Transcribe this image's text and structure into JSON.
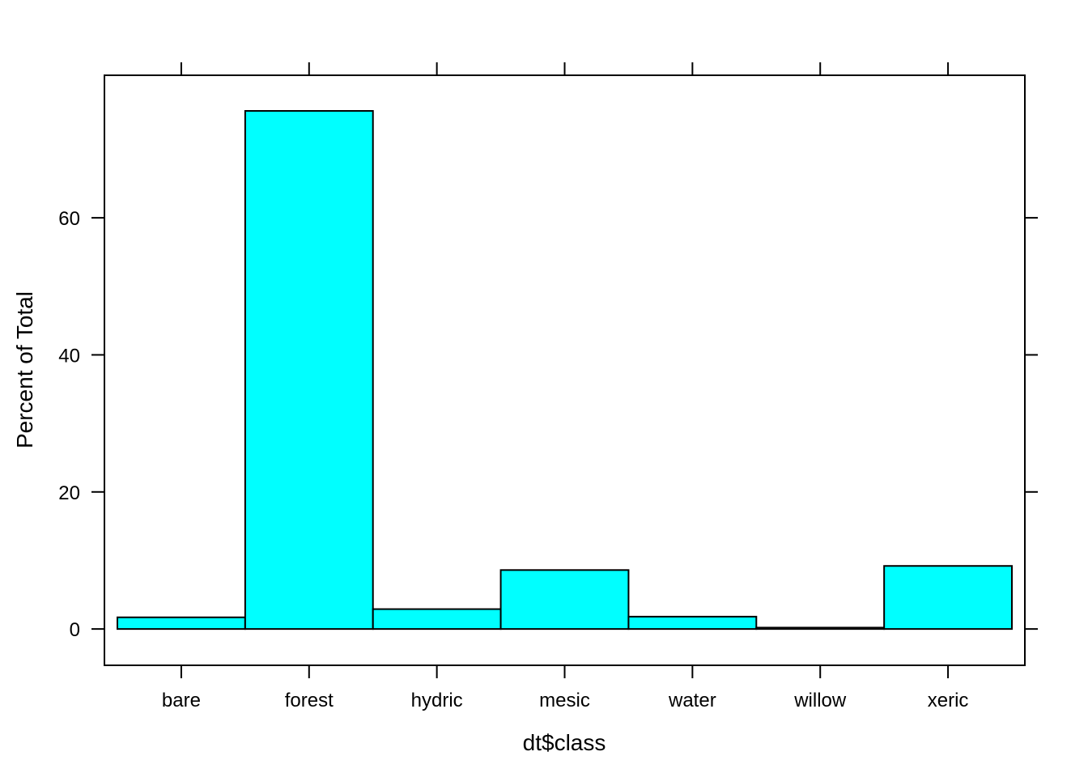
{
  "chart_data": {
    "type": "bar",
    "title": "",
    "xlabel": "dt$class",
    "ylabel": "Percent of Total",
    "categories": [
      "bare",
      "forest",
      "hydric",
      "mesic",
      "water",
      "willow",
      "xeric"
    ],
    "values": [
      1.7,
      75.6,
      2.9,
      8.6,
      1.8,
      0.2,
      9.2
    ],
    "yticks": [
      "0",
      "20",
      "40",
      "60"
    ],
    "ylim": [
      -5.3,
      80.8
    ],
    "grid": false,
    "legend": "none",
    "colors": {
      "bar_fill": "#00ffff",
      "bar_stroke": "#000000",
      "axis": "#000000"
    }
  }
}
